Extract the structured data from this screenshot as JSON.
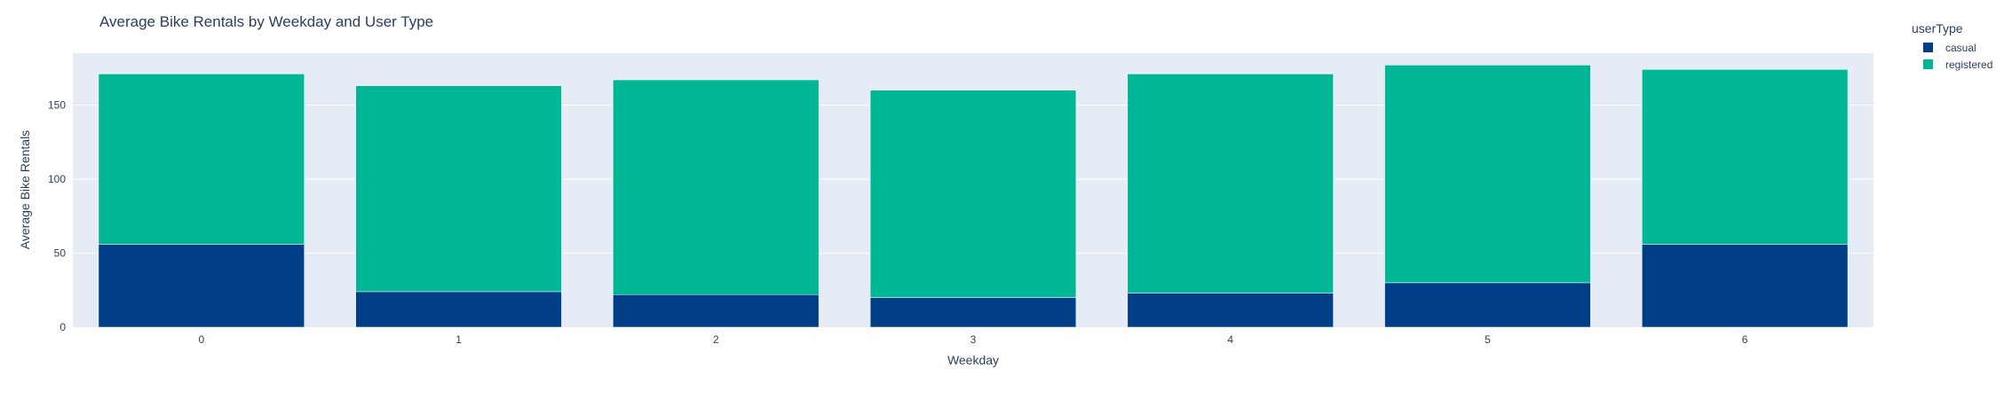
{
  "chart_data": {
    "type": "bar",
    "stacked": true,
    "title": "Average Bike Rentals by Weekday and User Type",
    "xlabel": "Weekday",
    "ylabel": "Average Bike Rentals",
    "categories": [
      "0",
      "1",
      "2",
      "3",
      "4",
      "5",
      "6"
    ],
    "yticks": [
      0,
      50,
      100,
      150
    ],
    "ylim": [
      0,
      185
    ],
    "grid": true,
    "legend": {
      "title": "userType",
      "placement": "top-right"
    },
    "series": [
      {
        "name": "casual",
        "color": "#003f88",
        "values": [
          56,
          24,
          22,
          20,
          23,
          30,
          56
        ]
      },
      {
        "name": "registered",
        "color": "#00b694",
        "values": [
          115,
          139,
          145,
          140,
          148,
          147,
          118
        ]
      }
    ],
    "plot_background": "#e5ecf6"
  }
}
